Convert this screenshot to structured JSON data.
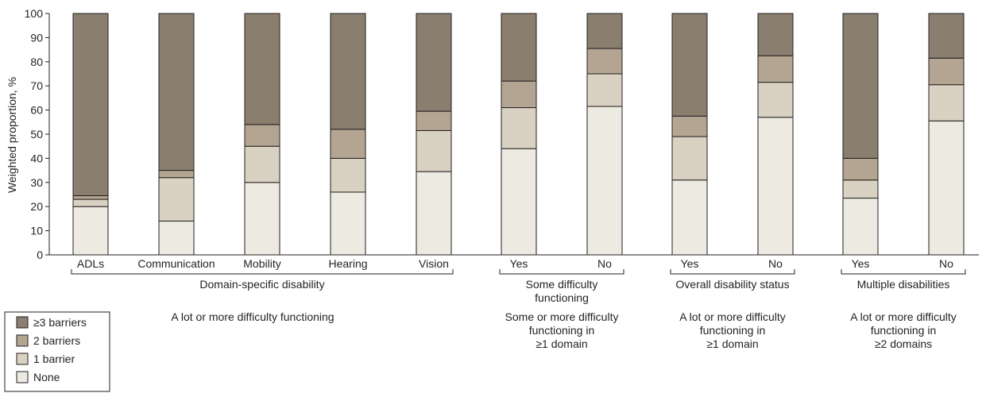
{
  "chart_data": {
    "type": "bar",
    "stacked": true,
    "ylabel": "Weighted proportion, %",
    "ylim": [
      0,
      100
    ],
    "yticks": [
      0,
      10,
      20,
      30,
      40,
      50,
      60,
      70,
      80,
      90,
      100
    ],
    "grid": false,
    "legend_position": "bottom-left",
    "categories": [
      "ADLs",
      "Communication",
      "Mobility",
      "Hearing",
      "Vision",
      "Yes",
      "No",
      "Yes",
      "No",
      "Yes",
      "No"
    ],
    "series": [
      {
        "name": "None",
        "color": "#edeae2",
        "values": [
          20,
          14,
          30,
          26,
          34.5,
          44,
          61.5,
          31,
          57,
          23.5,
          55.5
        ]
      },
      {
        "name": "1 barrier",
        "color": "#d9d1c1",
        "values": [
          3,
          18,
          15,
          14,
          17,
          17,
          13.5,
          18,
          14.5,
          7.5,
          15
        ]
      },
      {
        "name": "2 barriers",
        "color": "#b3a591",
        "values": [
          1.5,
          3,
          9,
          12,
          8,
          11,
          10.5,
          8.5,
          11,
          9,
          11
        ]
      },
      {
        "name": "≥3 barriers",
        "color": "#8a7e6f",
        "values": [
          75.5,
          65,
          46,
          48,
          40.5,
          28,
          14.5,
          42.5,
          17.5,
          60,
          18.5
        ]
      }
    ],
    "legend_order": [
      "≥3 barriers",
      "2 barriers",
      "1 barrier",
      "None"
    ],
    "groups": [
      {
        "label": "Domain-specific disability",
        "start": 0,
        "end": 4,
        "description": "A lot or more difficulty functioning"
      },
      {
        "label": "Some difficulty functioning",
        "start": 5,
        "end": 6,
        "description": "Some or more difficulty functioning in ≥1 domain"
      },
      {
        "label": "Overall disability status",
        "start": 7,
        "end": 8,
        "description": "A lot or more difficulty functioning in ≥1 domain"
      },
      {
        "label": "Multiple disabilities",
        "start": 9,
        "end": 10,
        "description": "A lot or more difficulty functioning in ≥2 domains"
      }
    ]
  }
}
